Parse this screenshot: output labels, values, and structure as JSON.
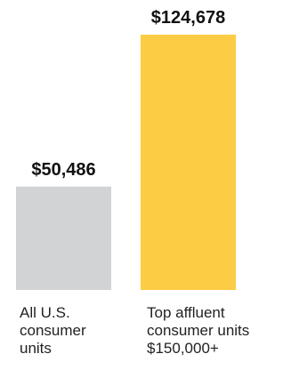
{
  "chart_data": {
    "type": "bar",
    "categories": [
      [
        "All U.S.",
        "consumer",
        "units"
      ],
      [
        "Top affluent",
        "consumer units",
        "$150,000+"
      ]
    ],
    "values": [
      50486,
      124678
    ],
    "value_labels": [
      "$50,486",
      "$124,678"
    ],
    "bar_colors": [
      "#d1d3d4",
      "#fdcc45"
    ],
    "title": "",
    "xlabel": "",
    "ylabel": "",
    "ylim": [
      0,
      124678
    ],
    "grid": false,
    "legend": "none"
  }
}
